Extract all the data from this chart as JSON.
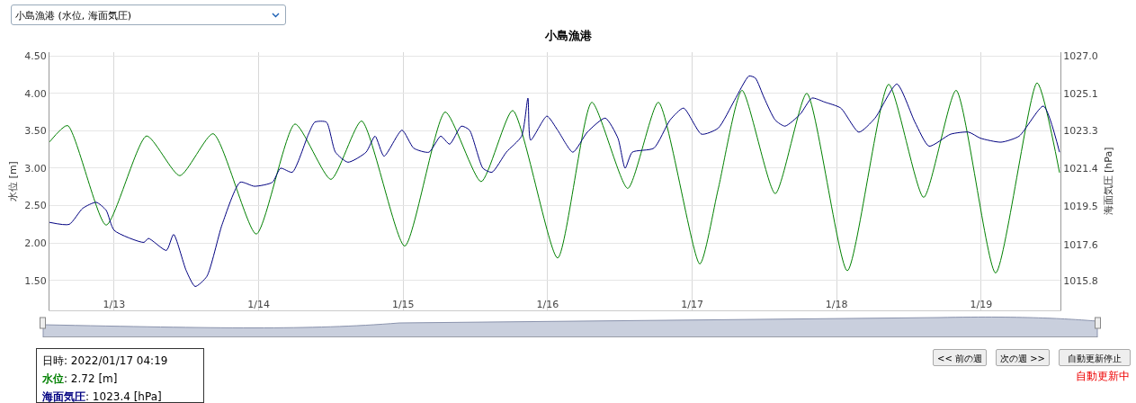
{
  "chart_data": {
    "type": "line",
    "title": "小島漁港",
    "ylabel": "水位 [m]",
    "y2label": "海面気圧 [hPa]",
    "xlim": [
      "2022-01-12T13:15",
      "2022-01-19T13:10"
    ],
    "xticks": [
      {
        "value": "2022-01-13",
        "label": "1/13"
      },
      {
        "value": "2022-01-14",
        "label": "1/14"
      },
      {
        "value": "2022-01-15",
        "label": "1/15"
      },
      {
        "value": "2022-01-16",
        "label": "1/16"
      },
      {
        "value": "2022-01-17",
        "label": "1/17"
      },
      {
        "value": "2022-01-18",
        "label": "1/18"
      },
      {
        "value": "2022-01-19",
        "label": "1/19"
      }
    ],
    "ylim": [
      1.1,
      4.55
    ],
    "yticks": [
      {
        "value": 1.5,
        "label": "1.50"
      },
      {
        "value": 2,
        "label": "2.00"
      },
      {
        "value": 2.5,
        "label": "2.50"
      },
      {
        "value": 3,
        "label": "3.00"
      },
      {
        "value": 3.5,
        "label": "3.50"
      },
      {
        "value": 4,
        "label": "4.00"
      },
      {
        "value": 4.5,
        "label": "4.50"
      }
    ],
    "y2lim": [
      1014.31,
      1027.19
    ],
    "y2ticks": [
      {
        "value": 1015.8,
        "label": "1015.8"
      },
      {
        "value": 1017.6,
        "label": "1017.6"
      },
      {
        "value": 1019.5,
        "label": "1019.5"
      },
      {
        "value": 1021.4,
        "label": "1021.4"
      },
      {
        "value": 1023.3,
        "label": "1023.3"
      },
      {
        "value": 1025.1,
        "label": "1025.1"
      },
      {
        "value": 1027.0,
        "label": "1027.0"
      }
    ],
    "grid": true,
    "series": [
      {
        "color": "#008000",
        "x": [
          "2022-01-12T13:15",
          "2022-01-12T16:15",
          "2022-01-12T22:40",
          "2022-01-13T05:23",
          "2022-01-13T10:54",
          "2022-01-13T16:26",
          "2022-01-13T23:36",
          "2022-01-14T06:02",
          "2022-01-14T12:00",
          "2022-01-14T17:05",
          "2022-01-15T00:15",
          "2022-01-15T06:59",
          "2022-01-15T12:57",
          "2022-01-15T18:11",
          "2022-01-16T01:39",
          "2022-01-16T07:20",
          "2022-01-16T13:18",
          "2022-01-16T18:23",
          "2022-01-17T01:16",
          "2022-01-17T04:19",
          "2022-01-17T08:17",
          "2022-01-17T13:48",
          "2022-01-17T19:02",
          "2022-01-18T01:46",
          "2022-01-18T08:38",
          "2022-01-18T14:27",
          "2022-01-18T19:50",
          "2022-01-19T02:24",
          "2022-01-19T09:17",
          "2022-01-19T13:01"
        ],
        "values": [
          3.35,
          3.57,
          2.24,
          3.43,
          2.9,
          3.46,
          2.12,
          3.59,
          2.85,
          3.63,
          1.96,
          3.75,
          2.82,
          3.77,
          1.8,
          3.88,
          2.73,
          3.88,
          1.72,
          2.72,
          4.04,
          2.66,
          4.0,
          1.63,
          4.12,
          2.61,
          4.04,
          1.6,
          4.14,
          2.94
        ]
      },
      {
        "color": "#000080",
        "axis": "y2",
        "x": [
          "2022-01-12T13:15",
          "2022-01-12T16:32",
          "2022-01-12T18:46",
          "2022-01-12T21:01",
          "2022-01-12T22:40",
          "2022-01-13T00:00",
          "2022-01-13T04:56",
          "2022-01-13T05:41",
          "2022-01-13T08:40",
          "2022-01-13T09:52",
          "2022-01-13T11:57",
          "2022-01-13T13:27",
          "2022-01-13T15:23",
          "2022-01-13T17:56",
          "2022-01-13T20:55",
          "2022-01-13T23:18",
          "2022-01-14T02:17",
          "2022-01-14T03:38",
          "2022-01-14T05:35",
          "2022-01-14T08:16",
          "2022-01-14T09:19",
          "2022-01-14T11:15",
          "2022-01-14T12:45",
          "2022-01-14T14:50",
          "2022-01-14T17:50",
          "2022-01-14T19:20",
          "2022-01-14T20:49",
          "2022-01-14T23:48",
          "2022-01-15T01:45",
          "2022-01-15T04:17",
          "2022-01-15T06:14",
          "2022-01-15T07:43",
          "2022-01-15T09:40",
          "2022-01-15T11:01",
          "2022-01-15T13:15",
          "2022-01-15T14:45",
          "2022-01-15T17:08",
          "2022-01-15T19:40",
          "2022-01-15T20:43",
          "2022-01-15T21:10",
          "2022-01-15T23:52",
          "2022-01-16T01:39",
          "2022-01-16T04:11",
          "2022-01-16T06:35",
          "2022-01-16T09:34",
          "2022-01-16T11:40",
          "2022-01-16T12:52",
          "2022-01-16T14:03",
          "2022-01-16T17:38",
          "2022-01-16T20:19",
          "2022-01-16T22:34",
          "2022-01-17T01:33",
          "2022-01-17T04:19",
          "2022-01-17T07:03",
          "2022-01-17T09:26",
          "2022-01-17T10:29",
          "2022-01-17T11:58",
          "2022-01-17T13:48",
          "2022-01-17T15:25",
          "2022-01-17T17:57",
          "2022-01-17T19:54",
          "2022-01-17T22:00",
          "2022-01-18T00:41",
          "2022-01-18T03:41",
          "2022-01-18T06:22",
          "2022-01-18T10:00",
          "2022-01-18T13:00",
          "2022-01-18T15:21",
          "2022-01-18T18:56",
          "2022-01-18T21:55",
          "2022-01-18T23:52",
          "2022-01-19T03:18",
          "2022-01-19T06:18",
          "2022-01-19T10:20",
          "2022-01-19T13:01"
        ],
        "values": [
          1018.7,
          1018.6,
          1019.4,
          1019.7,
          1019.3,
          1018.3,
          1017.7,
          1017.9,
          1017.3,
          1018.1,
          1016.3,
          1015.5,
          1016.0,
          1018.6,
          1020.7,
          1020.5,
          1020.7,
          1021.4,
          1021.2,
          1023.1,
          1023.7,
          1023.7,
          1022.2,
          1021.7,
          1022.2,
          1023.0,
          1022.0,
          1023.3,
          1022.4,
          1022.2,
          1023.0,
          1022.6,
          1023.5,
          1023.3,
          1021.4,
          1021.2,
          1022.2,
          1023.0,
          1024.9,
          1022.8,
          1024.0,
          1023.3,
          1022.2,
          1023.2,
          1023.9,
          1022.9,
          1021.4,
          1022.2,
          1022.4,
          1023.8,
          1024.4,
          1023.1,
          1023.4,
          1024.8,
          1026.0,
          1025.9,
          1024.9,
          1023.8,
          1023.5,
          1024.1,
          1024.9,
          1024.7,
          1024.4,
          1023.2,
          1023.9,
          1025.6,
          1023.7,
          1022.5,
          1023.1,
          1023.2,
          1022.9,
          1022.7,
          1023.0,
          1024.5,
          1022.2
        ]
      }
    ],
    "annotations": [
      "小島漁港 (水位, 海面気圧)",
      "<< 前の週",
      "次の週 >>",
      "自動更新停止",
      "自動更新中",
      "日時: 2022/01/17 04:19",
      "水位: 2.72 [m]",
      "海面気圧: 1023.4 [hPa]"
    ]
  }
}
